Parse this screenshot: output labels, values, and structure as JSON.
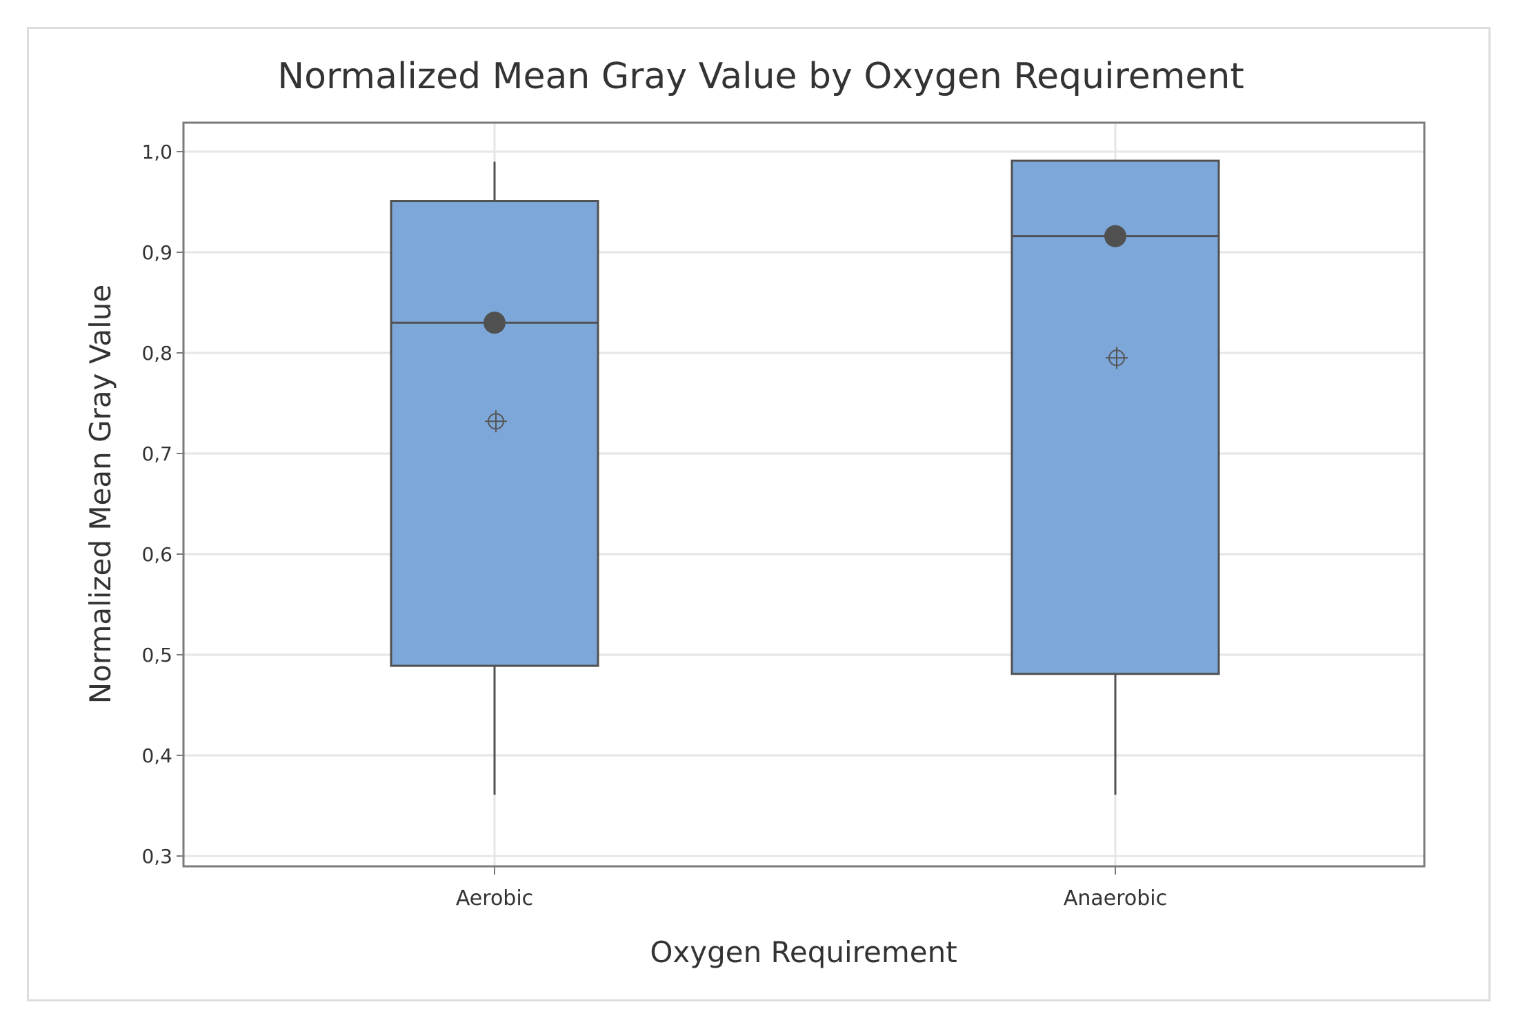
{
  "chart_data": {
    "type": "boxplot",
    "title": "Normalized Mean Gray Value by Oxygen Requirement",
    "xlabel": "Oxygen Requirement",
    "ylabel": "Normalized Mean Gray Value",
    "ylim": [
      0.3,
      1.0
    ],
    "yticks": [
      1.0,
      0.9,
      0.8,
      0.7,
      0.6,
      0.5,
      0.4,
      0.3
    ],
    "ytick_labels": [
      "1,0",
      "0,9",
      "0,8",
      "0,7",
      "0,6",
      "0,5",
      "0,4",
      "0,3"
    ],
    "grid": true,
    "categories": [
      "Aerobic",
      "Anaerobic"
    ],
    "boxes": [
      {
        "category": "Aerobic",
        "whisker_low": 0.361,
        "q1": 0.489,
        "median": 0.83,
        "q3": 0.951,
        "whisker_high": 0.99,
        "mean": 0.732
      },
      {
        "category": "Anaerobic",
        "whisker_low": 0.361,
        "q1": 0.481,
        "median": 0.916,
        "q3": 0.991,
        "whisker_high": 0.991,
        "mean": 0.795
      }
    ],
    "colors": {
      "box_fill": "#7da7d9",
      "box_edge": "#505050",
      "grid": "#e6e6e6",
      "axis": "#7a7a7a"
    }
  }
}
